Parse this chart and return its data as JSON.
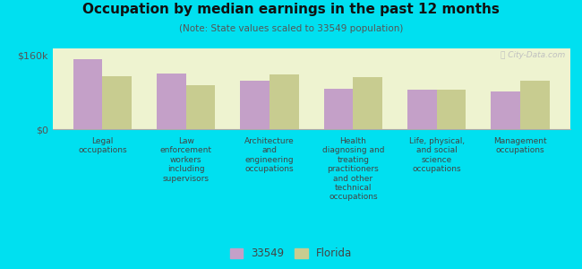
{
  "title": "Occupation by median earnings in the past 12 months",
  "subtitle": "(Note: State values scaled to 33549 population)",
  "categories": [
    "Legal\noccupations",
    "Law\nenforcement\nworkers\nincluding\nsupervisors",
    "Architecture\nand\nengineering\noccupations",
    "Health\ndiagnosing and\ntreating\npractitioners\nand other\ntechnical\noccupations",
    "Life, physical,\nand social\nscience\noccupations",
    "Management\noccupations"
  ],
  "values_33549": [
    152000,
    120000,
    105000,
    88000,
    85000,
    82000
  ],
  "values_florida": [
    115000,
    95000,
    118000,
    112000,
    85000,
    105000
  ],
  "color_33549": "#c4a0c8",
  "color_florida": "#c8cc90",
  "yticks": [
    0,
    160000
  ],
  "ytick_labels": [
    "$0",
    "$160k"
  ],
  "ylim": [
    0,
    175000
  ],
  "background_color": "#eef3d0",
  "outer_background": "#00e0f0",
  "legend_label_33549": "33549",
  "legend_label_florida": "Florida",
  "watermark": "Ⓡ City-Data.com"
}
